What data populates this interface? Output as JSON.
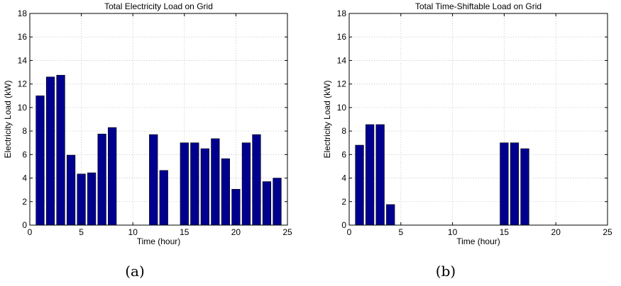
{
  "chart_data": [
    {
      "type": "bar",
      "title": "Total Electricity Load on Grid",
      "xlabel": "Time (hour)",
      "ylabel": "Electricity Load (kW)",
      "caption": "(a)",
      "xlim": [
        0,
        25
      ],
      "ylim": [
        0,
        18
      ],
      "xticks": [
        0,
        5,
        10,
        15,
        20,
        25
      ],
      "yticks": [
        0,
        2,
        4,
        6,
        8,
        10,
        12,
        14,
        16,
        18
      ],
      "grid": true,
      "bar_color": "#00008F",
      "bar_edge_color": "#000000",
      "x": [
        1,
        2,
        3,
        4,
        5,
        6,
        7,
        8,
        9,
        10,
        11,
        12,
        13,
        14,
        15,
        16,
        17,
        18,
        19,
        20,
        21,
        22,
        23,
        24
      ],
      "values": [
        11.0,
        12.6,
        12.75,
        5.95,
        4.35,
        4.45,
        7.75,
        8.3,
        0,
        0,
        0,
        7.7,
        4.65,
        0,
        7.0,
        7.0,
        6.5,
        7.35,
        5.65,
        3.05,
        7.0,
        7.7,
        3.7,
        4.0
      ]
    },
    {
      "type": "bar",
      "title": "Total Time-Shiftable Load on Grid",
      "xlabel": "Time (hour)",
      "ylabel": "Electricity Load (kW)",
      "caption": "(b)",
      "xlim": [
        0,
        25
      ],
      "ylim": [
        0,
        18
      ],
      "xticks": [
        0,
        5,
        10,
        15,
        20,
        25
      ],
      "yticks": [
        0,
        2,
        4,
        6,
        8,
        10,
        12,
        14,
        16,
        18
      ],
      "grid": true,
      "bar_color": "#00008F",
      "bar_edge_color": "#000000",
      "x": [
        1,
        2,
        3,
        4,
        5,
        6,
        7,
        8,
        9,
        10,
        11,
        12,
        13,
        14,
        15,
        16,
        17,
        18,
        19,
        20,
        21,
        22,
        23,
        24
      ],
      "values": [
        6.8,
        8.55,
        8.55,
        1.75,
        0,
        0,
        0,
        0,
        0,
        0,
        0,
        0,
        0,
        0,
        7.0,
        7.0,
        6.5,
        0,
        0,
        0,
        0,
        0,
        0,
        0
      ]
    }
  ]
}
